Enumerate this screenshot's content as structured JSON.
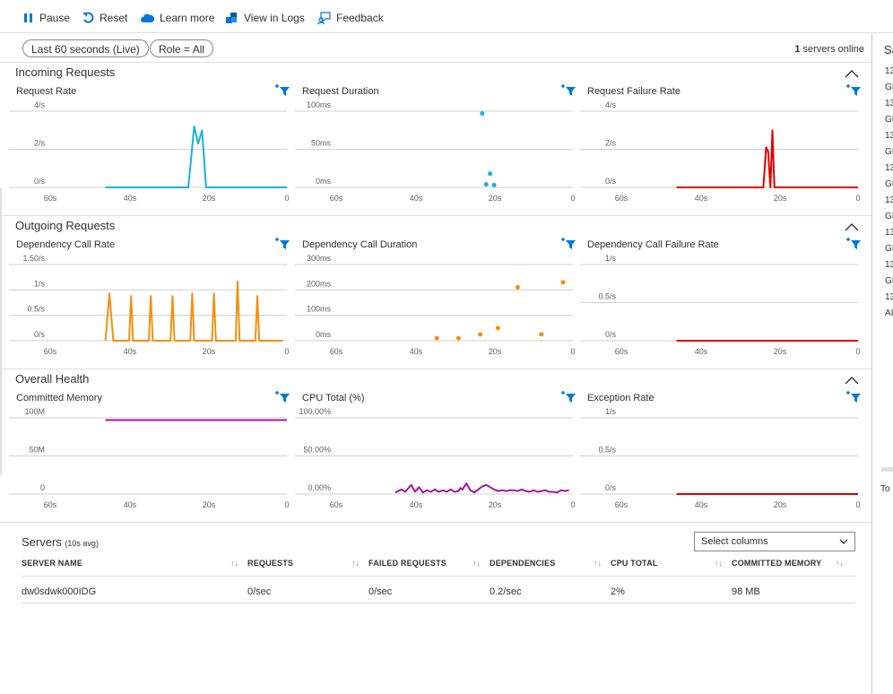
{
  "toolbar": {
    "pause": "Pause",
    "reset": "Reset",
    "learn_more": "Learn more",
    "view_in_logs": "View in Logs",
    "feedback": "Feedback"
  },
  "filters": {
    "time_range": "Last 60 seconds (Live)",
    "role": "Role = All",
    "servers_count": "1",
    "servers_online_label": "servers online"
  },
  "colors": {
    "incoming": "#1ab1e0",
    "failure": "#e00000",
    "outgoing": "#f29111",
    "health": "#a0189e",
    "funnel": "#0078d4"
  },
  "sections": [
    {
      "title": "Incoming Requests",
      "charts": [
        {
          "title": "Request Rate",
          "type": "line",
          "color": "#1ab1e0",
          "ylabels": [
            "4/s",
            "2/s",
            "0/s"
          ],
          "ymax": 4,
          "xlabels": [
            "60s",
            "40s",
            "20s",
            "0"
          ],
          "series": [
            [
              46,
              0
            ],
            [
              25,
              0
            ],
            [
              23.5,
              3.2
            ],
            [
              22.5,
              2.3
            ],
            [
              21.5,
              3.0
            ],
            [
              20.5,
              0
            ],
            [
              0,
              0
            ]
          ]
        },
        {
          "title": "Request Duration",
          "type": "scatter",
          "color": "#1ab1e0",
          "ylabels": [
            "100ms",
            "50ms",
            "0ms"
          ],
          "ymax": 100,
          "xlabels": [
            "60s",
            "40s",
            "20s",
            "0"
          ],
          "series": [
            [
              23,
              97
            ],
            [
              21,
              18
            ],
            [
              22,
              4
            ],
            [
              20,
              3
            ]
          ]
        },
        {
          "title": "Request Failure Rate",
          "type": "line",
          "color": "#e00000",
          "ylabels": [
            "4/s",
            "2/s",
            "0/s"
          ],
          "ymax": 4,
          "xlabels": [
            "60s",
            "40s",
            "20s",
            "0"
          ],
          "series": [
            [
              46,
              0
            ],
            [
              24,
              0
            ],
            [
              23.3,
              2.1
            ],
            [
              22.8,
              1.9
            ],
            [
              22.2,
              0
            ],
            [
              21.7,
              3.0
            ],
            [
              21.2,
              0
            ],
            [
              0,
              0
            ]
          ]
        }
      ]
    },
    {
      "title": "Outgoing Requests",
      "charts": [
        {
          "title": "Dependency Call Rate",
          "type": "line",
          "color": "#f29111",
          "ylabels": [
            "1.50/s",
            "1/s",
            "0.5/s",
            "0/s"
          ],
          "ymax": 1.5,
          "xlabels": [
            "60s",
            "40s",
            "20s",
            "0"
          ],
          "series": [
            [
              46,
              0
            ],
            [
              45,
              0.93
            ],
            [
              44,
              0
            ],
            [
              40,
              0
            ],
            [
              39.5,
              0.88
            ],
            [
              39,
              0
            ],
            [
              35,
              0
            ],
            [
              34.5,
              0.88
            ],
            [
              34,
              0
            ],
            [
              29.5,
              0
            ],
            [
              29,
              0.88
            ],
            [
              28.5,
              0
            ],
            [
              24.5,
              0
            ],
            [
              24,
              0.93
            ],
            [
              23.5,
              0
            ],
            [
              19,
              0
            ],
            [
              18.5,
              0.93
            ],
            [
              18,
              0
            ],
            [
              13,
              0
            ],
            [
              12.5,
              1.17
            ],
            [
              12,
              0
            ],
            [
              8,
              0
            ],
            [
              7.5,
              0.88
            ],
            [
              7,
              0
            ],
            [
              1,
              0
            ]
          ]
        },
        {
          "title": "Dependency Call Duration",
          "type": "scatter",
          "color": "#f29111",
          "ylabels": [
            "300ms",
            "200ms",
            "100ms",
            "0ms"
          ],
          "ymax": 300,
          "xlabels": [
            "60s",
            "40s",
            "20s",
            "0"
          ],
          "series": [
            [
              34.5,
              10
            ],
            [
              29,
              10
            ],
            [
              23.5,
              25
            ],
            [
              19,
              50
            ],
            [
              14,
              210
            ],
            [
              8,
              25
            ],
            [
              2.5,
              230
            ]
          ]
        },
        {
          "title": "Dependency Call Failure Rate",
          "type": "line",
          "color": "#e00000",
          "ylabels": [
            "1/s",
            "0.5/s",
            "0/s"
          ],
          "ymax": 1,
          "xlabels": [
            "60s",
            "40s",
            "20s",
            "0"
          ],
          "series": [
            [
              46,
              0
            ],
            [
              0,
              0
            ]
          ]
        }
      ]
    },
    {
      "title": "Overall Health",
      "charts": [
        {
          "title": "Committed Memory",
          "type": "line",
          "color": "#a0189e",
          "ylabels": [
            "100M",
            "50M",
            "0"
          ],
          "ymax": 100,
          "xlabels": [
            "60s",
            "40s",
            "20s",
            "0"
          ],
          "series": [
            [
              46,
              97
            ],
            [
              30,
              97
            ],
            [
              16,
              97
            ],
            [
              0,
              97
            ]
          ]
        },
        {
          "title": "CPU Total (%)",
          "type": "line",
          "color": "#a0189e",
          "ylabels": [
            "100.00%",
            "50.00%",
            "0.00%"
          ],
          "ymax": 100,
          "xlabels": [
            "60s",
            "40s",
            "20s",
            "0"
          ],
          "series": [
            [
              45,
              2
            ],
            [
              43.5,
              6
            ],
            [
              42.5,
              3
            ],
            [
              41,
              12
            ],
            [
              40,
              3
            ],
            [
              39,
              9
            ],
            [
              38,
              2
            ],
            [
              37,
              5
            ],
            [
              36,
              3
            ],
            [
              35,
              6
            ],
            [
              34,
              3
            ],
            [
              33,
              5
            ],
            [
              32,
              3
            ],
            [
              31,
              6
            ],
            [
              30,
              3
            ],
            [
              29,
              4
            ],
            [
              28.5,
              8
            ],
            [
              28,
              6
            ],
            [
              27,
              14
            ],
            [
              26,
              5
            ],
            [
              25,
              2
            ],
            [
              24,
              6
            ],
            [
              23,
              10
            ],
            [
              22,
              12
            ],
            [
              21,
              9
            ],
            [
              20,
              6
            ],
            [
              19,
              4
            ],
            [
              18,
              5
            ],
            [
              17,
              4
            ],
            [
              16,
              5
            ],
            [
              15,
              5
            ],
            [
              14,
              4
            ],
            [
              13,
              6
            ],
            [
              12,
              4
            ],
            [
              11,
              3
            ],
            [
              10,
              5
            ],
            [
              9,
              3
            ],
            [
              8,
              4
            ],
            [
              7,
              5
            ],
            [
              6,
              3
            ],
            [
              5,
              3
            ],
            [
              4,
              2
            ],
            [
              3,
              5
            ],
            [
              2,
              4
            ],
            [
              1,
              5
            ]
          ]
        },
        {
          "title": "Exception Rate",
          "type": "line",
          "color": "#e00000",
          "ylabels": [
            "1/s",
            "0.5/s",
            "0/s"
          ],
          "ymax": 1,
          "xlabels": [
            "60s",
            "40s",
            "20s",
            "0"
          ],
          "series": [
            [
              46,
              0
            ],
            [
              0,
              0
            ]
          ]
        }
      ]
    }
  ],
  "servers": {
    "title": "Servers",
    "subtitle": "(10s avg)",
    "select_columns": "Select columns",
    "columns": [
      "SERVER NAME",
      "REQUESTS",
      "FAILED REQUESTS",
      "DEPENDENCIES",
      "CPU TOTAL",
      "COMMITTED MEMORY"
    ],
    "sort_glyph": "↑↓",
    "rows": [
      [
        "dw0sdwk000IDG",
        "0/sec",
        "0/sec",
        "0.2/sec",
        "2%",
        "98 MB"
      ]
    ]
  },
  "sidepanel": {
    "title": "Sa",
    "items": [
      "13",
      "GI",
      "13",
      "GI",
      "13",
      "GI",
      "13",
      "GI",
      "13",
      "GI",
      "13",
      "GI",
      "13",
      "GI",
      "13",
      "AI"
    ],
    "footer": "To"
  }
}
